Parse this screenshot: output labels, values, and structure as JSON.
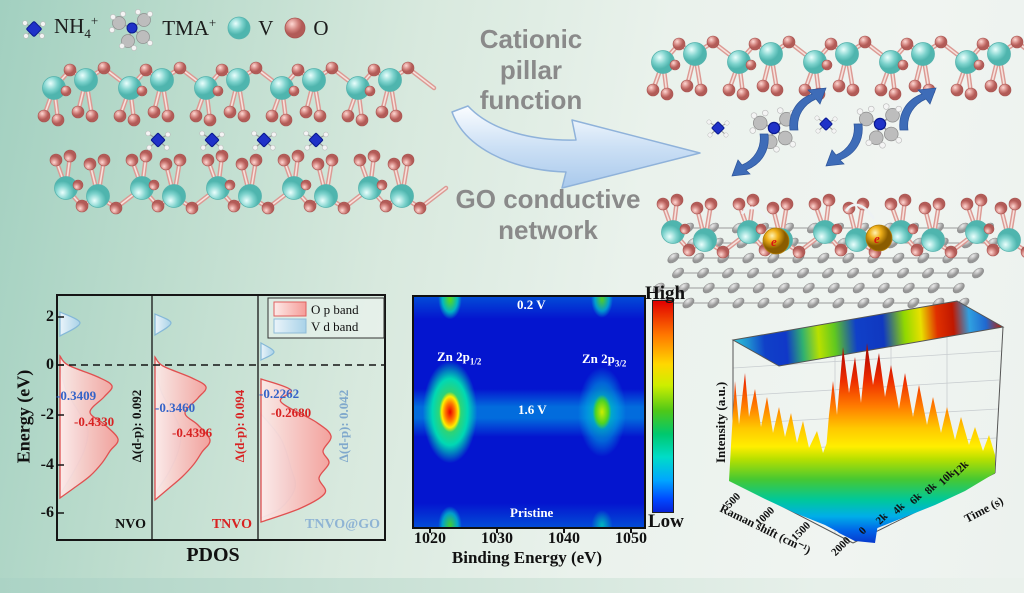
{
  "legend": {
    "items": [
      {
        "base": "NH",
        "sub": "4",
        "sup": "+"
      },
      {
        "base": "TMA",
        "sub": "",
        "sup": "+"
      },
      {
        "base": "V",
        "sub": "",
        "sup": ""
      },
      {
        "base": "O",
        "sub": "",
        "sup": ""
      }
    ]
  },
  "scheme": {
    "arrow_top_label": "Cationic pillar function",
    "arrow_bottom_label": "GO conductive network",
    "electron_label": "e"
  },
  "pdos": {
    "ylabel": "Energy (eV)",
    "yticks": [
      "2",
      "0",
      "-2",
      "-4",
      "-6"
    ],
    "xlabel": "PDOS",
    "legend": {
      "o_p": "O p band",
      "v_d": "V d band"
    },
    "panels": [
      {
        "name": "NVO",
        "blue_value": "-0.3409",
        "red_value": "-0.4330",
        "delta": "Δ(d-p): 0.092"
      },
      {
        "name": "TNVO",
        "blue_value": "-0.3460",
        "red_value": "-0.4396",
        "delta": "Δ(d-p): 0.094"
      },
      {
        "name": "TNVO@GO",
        "blue_value": "-0.2262",
        "red_value": "-0.2680",
        "delta": "Δ(d-p): 0.042"
      }
    ]
  },
  "xps": {
    "labels": {
      "top_state": "0.2 V",
      "mid_state": "1.6 V",
      "bottom_state": "Pristine"
    },
    "peak_left": {
      "base": "Zn 2p",
      "sub": "1/2"
    },
    "peak_right": {
      "base": "Zn 2p",
      "sub": "3/2"
    },
    "xticks": [
      "1020",
      "1030",
      "1040",
      "1050"
    ],
    "xlabel": "Binding Energy (eV)",
    "colorbar_high": "High",
    "colorbar_low": "Low"
  },
  "raman": {
    "zlabel": "Intensity (a.u.)",
    "xlabel": "Raman shift (cm⁻¹)",
    "xticks": [
      "500",
      "1000",
      "1500",
      "2000"
    ],
    "ylabel": "Time (s)",
    "yticks": [
      "0",
      "2k",
      "4k",
      "6k",
      "8k",
      "10k",
      "12k"
    ]
  },
  "chart_data": [
    {
      "type": "area",
      "title": "PDOS",
      "xlabel": "PDOS",
      "ylabel": "Energy (eV)",
      "ylim": [
        -7,
        3
      ],
      "yticks": [
        2,
        0,
        -2,
        -4,
        -6
      ],
      "series": [
        "O p band",
        "V d band"
      ],
      "fermi_level": 0,
      "panels": [
        {
          "name": "NVO",
          "v_d_band_center": -0.3409,
          "o_p_band_center": -0.433,
          "delta_d_p": 0.092
        },
        {
          "name": "TNVO",
          "v_d_band_center": -0.346,
          "o_p_band_center": -0.4396,
          "delta_d_p": 0.094
        },
        {
          "name": "TNVO@GO",
          "v_d_band_center": -0.2262,
          "o_p_band_center": -0.268,
          "delta_d_p": 0.042
        }
      ]
    },
    {
      "type": "heatmap",
      "xlabel": "Binding Energy (eV)",
      "xticks": [
        1020,
        1030,
        1040,
        1050
      ],
      "states_top_to_bottom": [
        "0.2 V",
        "1.6 V",
        "Pristine"
      ],
      "peaks": [
        {
          "label": "Zn 2p1/2",
          "binding_energy_eV": 1022,
          "strongest_state": "1.6 V",
          "intensity": "high (red core)"
        },
        {
          "label": "Zn 2p3/2",
          "binding_energy_eV": 1045,
          "strongest_state": "1.6 V",
          "intensity": "medium (green core)"
        }
      ],
      "colorbar": {
        "high": "High",
        "low": "Low"
      }
    },
    {
      "type": "area",
      "title": "In situ Raman 3D waterfall",
      "xlabel": "Raman shift (cm⁻¹)",
      "xrange": [
        0,
        2000
      ],
      "xticks": [
        500,
        1000,
        1500,
        2000
      ],
      "ylabel": "Time (s)",
      "yticks": [
        "0",
        "2k",
        "4k",
        "6k",
        "8k",
        "10k",
        "12k"
      ],
      "zlabel": "Intensity (a.u.)",
      "description": "Rainbow-coded intensity surface with high (red) ridges near low Raman shift and 500-1000 cm⁻¹ over time; top face shows projected heatmap"
    }
  ],
  "colors": {
    "background_left": "#a2d0c0",
    "v_atom": "#7ed3cd",
    "o_atom": "#cf7f7b",
    "nh4_blue": "#1f32c8",
    "big_arrow_fill": "#bcd6f2",
    "title_gray": "#8a8a8a",
    "xps_background": "#0415cf",
    "gold_electron": "#f0b018"
  }
}
